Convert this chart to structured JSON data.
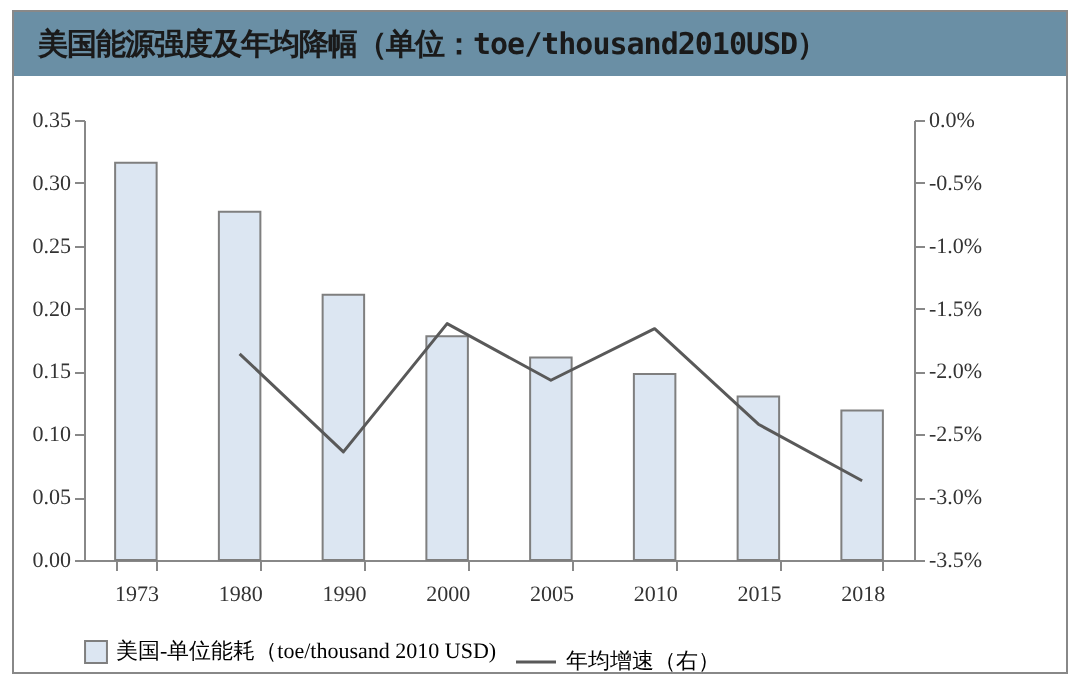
{
  "chart_data": {
    "type": "bar",
    "title": "美国能源强度及年均降幅（单位：toe/thousand2010USD）",
    "categories": [
      "1973",
      "1980",
      "1990",
      "2000",
      "2005",
      "2010",
      "2015",
      "2018"
    ],
    "series": [
      {
        "name": "美国-单位能耗（toe/thousand 2010 USD)",
        "color": "#dce6f2",
        "values": [
          0.316,
          0.277,
          0.211,
          0.178,
          0.161,
          0.148,
          0.13,
          0.119
        ]
      },
      {
        "name": "年均增速（右）",
        "type": "line",
        "axis": "y2",
        "color": "#595959",
        "values": [
          null,
          -1.86,
          -2.64,
          -1.62,
          -2.07,
          -1.66,
          -2.42,
          -2.87
        ]
      }
    ],
    "ylim": [
      0,
      0.35
    ],
    "yticks": [
      {
        "value": 0,
        "label": "0.00"
      },
      {
        "value": 0.05,
        "label": "0.05"
      },
      {
        "value": 0.1,
        "label": "0.10"
      },
      {
        "value": 0.15,
        "label": "0.15"
      },
      {
        "value": 0.2,
        "label": "0.20"
      },
      {
        "value": 0.25,
        "label": "0.25"
      },
      {
        "value": 0.3,
        "label": "0.30"
      },
      {
        "value": 0.35,
        "label": "0.35"
      }
    ],
    "y2lim": [
      -3.5,
      0
    ],
    "y2ticks": [
      {
        "value": 0,
        "label": "0.0%"
      },
      {
        "value": -0.5,
        "label": "-0.5%"
      },
      {
        "value": -1,
        "label": "-1.0%"
      },
      {
        "value": -1.5,
        "label": "-1.5%"
      },
      {
        "value": -2,
        "label": "-2.0%"
      },
      {
        "value": -2.5,
        "label": "-2.5%"
      },
      {
        "value": -3,
        "label": "-3.0%"
      },
      {
        "value": -3.5,
        "label": "-3.5%"
      }
    ],
    "grid": false,
    "legend": "bottom",
    "marker": "none",
    "line_style": "solid"
  }
}
